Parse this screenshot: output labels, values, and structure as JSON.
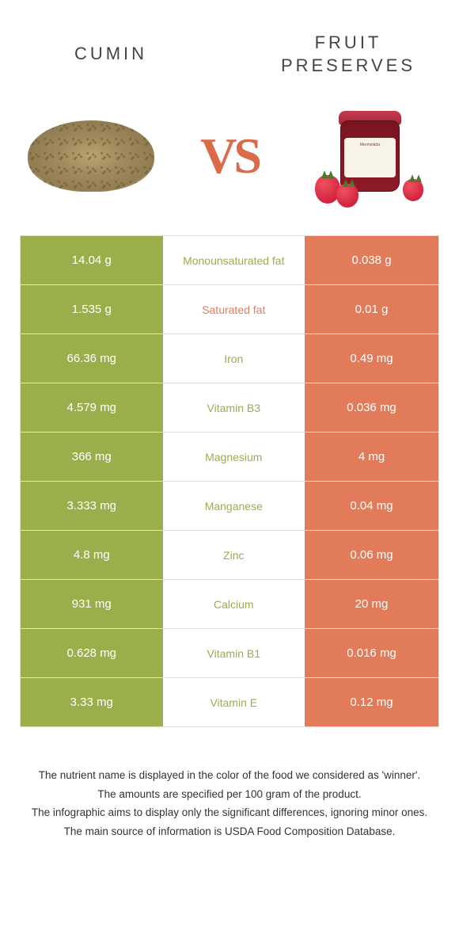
{
  "colors": {
    "left_bg": "#9aae4b",
    "right_bg": "#e27b5a",
    "left_text": "#9aae4b",
    "right_text": "#e27b5a",
    "cell_text": "#ffffff"
  },
  "header": {
    "left_title": "CUMIN",
    "right_title": "FRUIT PRESERVES",
    "vs": "VS"
  },
  "rows": [
    {
      "left": "14.04 g",
      "label": "Monounsaturated fat",
      "right": "0.038 g",
      "winner": "left"
    },
    {
      "left": "1.535 g",
      "label": "Saturated fat",
      "right": "0.01 g",
      "winner": "right"
    },
    {
      "left": "66.36 mg",
      "label": "Iron",
      "right": "0.49 mg",
      "winner": "left"
    },
    {
      "left": "4.579 mg",
      "label": "Vitamin B3",
      "right": "0.036 mg",
      "winner": "left"
    },
    {
      "left": "366 mg",
      "label": "Magnesium",
      "right": "4 mg",
      "winner": "left"
    },
    {
      "left": "3.333 mg",
      "label": "Manganese",
      "right": "0.04 mg",
      "winner": "left"
    },
    {
      "left": "4.8 mg",
      "label": "Zinc",
      "right": "0.06 mg",
      "winner": "left"
    },
    {
      "left": "931 mg",
      "label": "Calcium",
      "right": "20 mg",
      "winner": "left"
    },
    {
      "left": "0.628 mg",
      "label": "Vitamin B1",
      "right": "0.016 mg",
      "winner": "left"
    },
    {
      "left": "3.33 mg",
      "label": "Vitamin E",
      "right": "0.12 mg",
      "winner": "left"
    }
  ],
  "footnotes": [
    "The nutrient name is displayed in the color of the food we considered as 'winner'.",
    "The amounts are specified per 100 gram of the product.",
    "The infographic aims to display only the significant differences, ignoring minor ones.",
    "The main source of information is USDA Food Composition Database."
  ]
}
